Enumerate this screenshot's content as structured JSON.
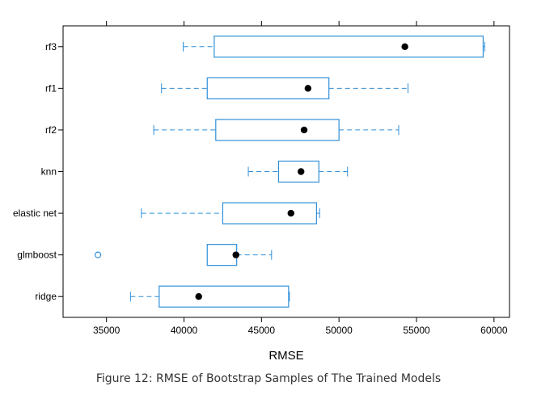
{
  "caption": "Figure 12: RMSE of Bootstrap Samples of The Trained Models",
  "colors": {
    "box": "#2f8fd8",
    "median": "#000000",
    "frame": "#000000",
    "background": "#ffffff"
  },
  "chart_data": {
    "type": "boxplot",
    "orientation": "horizontal",
    "title": "",
    "xlabel": "RMSE",
    "ylabel": "",
    "xlim": [
      32200,
      61000
    ],
    "x_ticks": [
      35000,
      40000,
      45000,
      50000,
      55000,
      60000
    ],
    "x_tick_labels": [
      "35000",
      "40000",
      "45000",
      "50000",
      "55000",
      "60000"
    ],
    "ticks_top": true,
    "grid": false,
    "legend": "none",
    "categories": [
      "rf3",
      "rf1",
      "rf2",
      "knn",
      "elastic net",
      "glmboost",
      "ridge"
    ],
    "boxes": [
      {
        "name": "rf3",
        "whisker_low": 39950,
        "q1": 41950,
        "median": 54250,
        "q3": 59300,
        "whisker_high": 59400,
        "outliers": []
      },
      {
        "name": "rf1",
        "whisker_low": 38550,
        "q1": 41500,
        "median": 48000,
        "q3": 49350,
        "whisker_high": 54450,
        "outliers": []
      },
      {
        "name": "rf2",
        "whisker_low": 38050,
        "q1": 42050,
        "median": 47750,
        "q3": 50000,
        "whisker_high": 53850,
        "outliers": []
      },
      {
        "name": "knn",
        "whisker_low": 44150,
        "q1": 46100,
        "median": 47550,
        "q3": 48700,
        "whisker_high": 50550,
        "outliers": []
      },
      {
        "name": "elastic net",
        "whisker_low": 37250,
        "q1": 42500,
        "median": 46900,
        "q3": 48550,
        "whisker_high": 48750,
        "outliers": []
      },
      {
        "name": "glmboost",
        "whisker_low": 41500,
        "q1": 41500,
        "median": 43350,
        "q3": 43400,
        "whisker_high": 45650,
        "outliers": [
          34450
        ]
      },
      {
        "name": "ridge",
        "whisker_low": 36550,
        "q1": 38400,
        "median": 40950,
        "q3": 46750,
        "whisker_high": 46800,
        "outliers": []
      }
    ]
  }
}
